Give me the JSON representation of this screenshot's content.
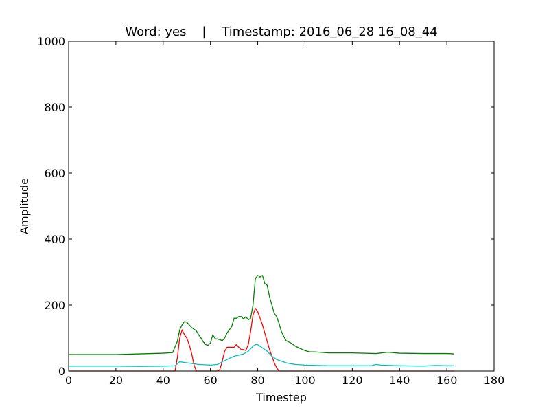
{
  "chart_data": {
    "type": "line",
    "title": "Word: yes    |    Timestamp: 2016_06_28 16_08_44",
    "xlabel": "Timestep",
    "ylabel": "Amplitude",
    "xlim": [
      0,
      180
    ],
    "ylim": [
      0,
      1000
    ],
    "xticks": [
      0,
      20,
      40,
      60,
      80,
      100,
      120,
      140,
      160,
      180
    ],
    "yticks": [
      0,
      200,
      400,
      600,
      800,
      1000
    ],
    "x_tick_labels": [
      "0",
      "20",
      "40",
      "60",
      "80",
      "100",
      "120",
      "140",
      "160",
      "180"
    ],
    "y_tick_labels": [
      "0",
      "200",
      "400",
      "600",
      "800",
      "1000"
    ],
    "grid": false,
    "series": [
      {
        "color": "#008000",
        "points": [
          [
            0,
            50
          ],
          [
            10,
            50
          ],
          [
            20,
            50
          ],
          [
            30,
            52
          ],
          [
            40,
            54
          ],
          [
            44,
            56
          ],
          [
            46,
            90
          ],
          [
            47,
            125
          ],
          [
            48,
            140
          ],
          [
            49,
            150
          ],
          [
            50,
            148
          ],
          [
            51,
            140
          ],
          [
            52,
            132
          ],
          [
            54,
            122
          ],
          [
            55,
            110
          ],
          [
            56,
            100
          ],
          [
            57,
            88
          ],
          [
            58,
            80
          ],
          [
            59,
            78
          ],
          [
            60,
            85
          ],
          [
            61,
            110
          ],
          [
            62,
            98
          ],
          [
            63,
            97
          ],
          [
            64,
            95
          ],
          [
            65,
            92
          ],
          [
            66,
            100
          ],
          [
            67,
            115
          ],
          [
            68,
            125
          ],
          [
            69,
            135
          ],
          [
            70,
            160
          ],
          [
            71,
            160
          ],
          [
            72,
            165
          ],
          [
            73,
            165
          ],
          [
            74,
            158
          ],
          [
            75,
            165
          ],
          [
            76,
            155
          ],
          [
            77,
            160
          ],
          [
            78,
            200
          ],
          [
            79,
            280
          ],
          [
            80,
            290
          ],
          [
            81,
            285
          ],
          [
            82,
            290
          ],
          [
            83,
            265
          ],
          [
            84,
            260
          ],
          [
            85,
            225
          ],
          [
            86,
            200
          ],
          [
            87,
            175
          ],
          [
            88,
            165
          ],
          [
            89,
            145
          ],
          [
            90,
            120
          ],
          [
            91,
            105
          ],
          [
            92,
            92
          ],
          [
            94,
            85
          ],
          [
            96,
            75
          ],
          [
            98,
            68
          ],
          [
            100,
            62
          ],
          [
            102,
            58
          ],
          [
            104,
            58
          ],
          [
            110,
            55
          ],
          [
            120,
            55
          ],
          [
            130,
            53
          ],
          [
            135,
            57
          ],
          [
            140,
            54
          ],
          [
            150,
            53
          ],
          [
            160,
            53
          ],
          [
            163,
            52
          ]
        ]
      },
      {
        "color": "#ff0000",
        "points": [
          [
            0,
            0
          ],
          [
            45,
            0
          ],
          [
            46,
            40
          ],
          [
            47,
            100
          ],
          [
            48,
            125
          ],
          [
            49,
            110
          ],
          [
            50,
            100
          ],
          [
            51,
            80
          ],
          [
            52,
            55
          ],
          [
            53,
            20
          ],
          [
            54,
            0
          ],
          [
            63,
            0
          ],
          [
            64,
            5
          ],
          [
            65,
            30
          ],
          [
            66,
            60
          ],
          [
            67,
            72
          ],
          [
            68,
            72
          ],
          [
            69,
            72
          ],
          [
            70,
            72
          ],
          [
            71,
            80
          ],
          [
            72,
            72
          ],
          [
            73,
            65
          ],
          [
            74,
            65
          ],
          [
            75,
            62
          ],
          [
            76,
            80
          ],
          [
            77,
            120
          ],
          [
            78,
            170
          ],
          [
            79,
            190
          ],
          [
            80,
            180
          ],
          [
            81,
            160
          ],
          [
            82,
            140
          ],
          [
            83,
            115
          ],
          [
            84,
            90
          ],
          [
            85,
            65
          ],
          [
            86,
            45
          ],
          [
            87,
            25
          ],
          [
            88,
            10
          ],
          [
            89,
            0
          ],
          [
            163,
            0
          ]
        ]
      },
      {
        "color": "#00bfbf",
        "points": [
          [
            0,
            15
          ],
          [
            10,
            15
          ],
          [
            20,
            15
          ],
          [
            30,
            14
          ],
          [
            40,
            15
          ],
          [
            45,
            16
          ],
          [
            46,
            22
          ],
          [
            47,
            28
          ],
          [
            50,
            25
          ],
          [
            55,
            20
          ],
          [
            60,
            18
          ],
          [
            63,
            20
          ],
          [
            65,
            28
          ],
          [
            67,
            35
          ],
          [
            70,
            45
          ],
          [
            72,
            48
          ],
          [
            74,
            52
          ],
          [
            76,
            60
          ],
          [
            78,
            75
          ],
          [
            79,
            80
          ],
          [
            80,
            80
          ],
          [
            82,
            70
          ],
          [
            84,
            60
          ],
          [
            86,
            45
          ],
          [
            88,
            35
          ],
          [
            90,
            30
          ],
          [
            92,
            25
          ],
          [
            94,
            22
          ],
          [
            96,
            20
          ],
          [
            100,
            18
          ],
          [
            110,
            16
          ],
          [
            120,
            16
          ],
          [
            128,
            16
          ],
          [
            130,
            20
          ],
          [
            132,
            18
          ],
          [
            140,
            16
          ],
          [
            150,
            15
          ],
          [
            155,
            17
          ],
          [
            160,
            16
          ],
          [
            163,
            16
          ]
        ]
      }
    ]
  }
}
